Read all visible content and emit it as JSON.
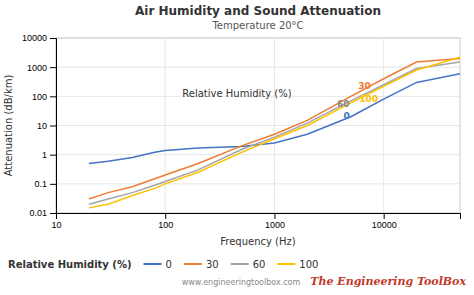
{
  "chart_data": {
    "type": "line",
    "title": "Air Humidity and Sound Attenuation",
    "subtitle": "Temperature 20°C",
    "x_label": "Frequency (Hz)",
    "y_label": "Attenuation (dB/km)",
    "log": true,
    "grid": true,
    "legend": "lower left",
    "legend_title": "Relative Humidity (%)",
    "xlim": [
      10,
      50000
    ],
    "ylim": [
      0.01,
      10000
    ],
    "xticks": [
      10,
      100,
      1000,
      10000
    ],
    "yticks": [
      0.01,
      0.1,
      1,
      10,
      100,
      1000,
      10000
    ],
    "x": [
      20,
      30,
      50,
      80,
      100,
      200,
      500,
      1000,
      2000,
      5000,
      10000,
      20000,
      50000
    ],
    "series": [
      {
        "name": "0",
        "color": "#4472c4",
        "values": [
          0.5,
          0.6,
          0.8,
          1.2,
          1.4,
          1.7,
          1.9,
          2.5,
          5.0,
          20.0,
          80.0,
          300.0,
          600.0
        ]
      },
      {
        "name": "30",
        "color": "#ed7d31",
        "values": [
          0.03,
          0.05,
          0.08,
          0.15,
          0.2,
          0.5,
          2.0,
          5.0,
          15.0,
          100.0,
          400.0,
          1500.0,
          2000.0
        ]
      },
      {
        "name": "60",
        "color": "#a5a5a5",
        "values": [
          0.02,
          0.03,
          0.05,
          0.09,
          0.12,
          0.3,
          1.5,
          4.0,
          12.0,
          70.0,
          250.0,
          900.0,
          1500.0
        ]
      },
      {
        "name": "100",
        "color": "#ffc000",
        "values": [
          0.015,
          0.02,
          0.04,
          0.07,
          0.1,
          0.25,
          1.2,
          3.5,
          10.0,
          60.0,
          220.0,
          800.0,
          2200.0
        ]
      }
    ],
    "annotations": [
      {
        "text": "Relative Humidity (%)",
        "x": 1500,
        "y": 80
      }
    ],
    "curve_labels": [
      {
        "text": "30",
        "x": 5500,
        "y": 220,
        "color": "#ed7d31"
      },
      {
        "text": "60",
        "x": 5200,
        "y": 55,
        "color": "#888888"
      },
      {
        "text": "100",
        "x": 5600,
        "y": 85,
        "color": "#ffc000"
      },
      {
        "text": "0",
        "x": 5200,
        "y": 22,
        "color": "#4472c4"
      }
    ],
    "watermark": "The Engineering ToolBox",
    "watermark_url": "www.engineeringtoolbox.com"
  }
}
